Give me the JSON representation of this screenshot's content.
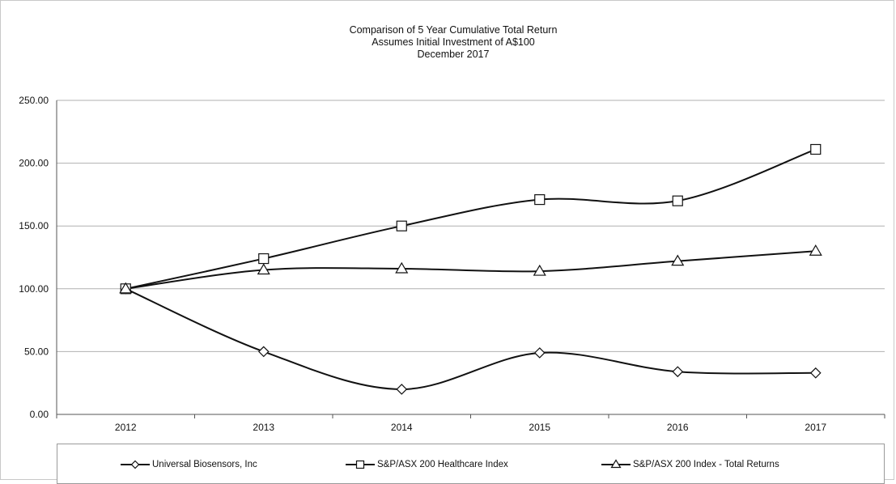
{
  "chart_data": {
    "type": "line",
    "title": "Comparison of 5 Year Cumulative Total Return",
    "subtitle": [
      "Assumes Initial Investment of A$100",
      "December 2017"
    ],
    "xlabel": "",
    "ylabel": "",
    "categories": [
      "2012",
      "2013",
      "2014",
      "2015",
      "2016",
      "2017"
    ],
    "ylim": [
      0,
      250
    ],
    "yticks": [
      "0.00",
      "50.00",
      "100.00",
      "150.00",
      "200.00",
      "250.00"
    ],
    "grid": true,
    "legend_position": "bottom",
    "series": [
      {
        "name": "Universal Biosensors, Inc",
        "marker": "diamond",
        "values": [
          100,
          50,
          20,
          49,
          34,
          33
        ]
      },
      {
        "name": "S&P/ASX 200 Healthcare Index",
        "marker": "square",
        "values": [
          100,
          124,
          150,
          171,
          170,
          211
        ]
      },
      {
        "name": "S&P/ASX  200 Index - Total Returns",
        "marker": "triangle",
        "values": [
          100,
          115,
          116,
          114,
          122,
          130
        ]
      }
    ]
  },
  "colors": {
    "line": "#111111",
    "grid": "#b0b0b0",
    "axis": "#555555"
  }
}
